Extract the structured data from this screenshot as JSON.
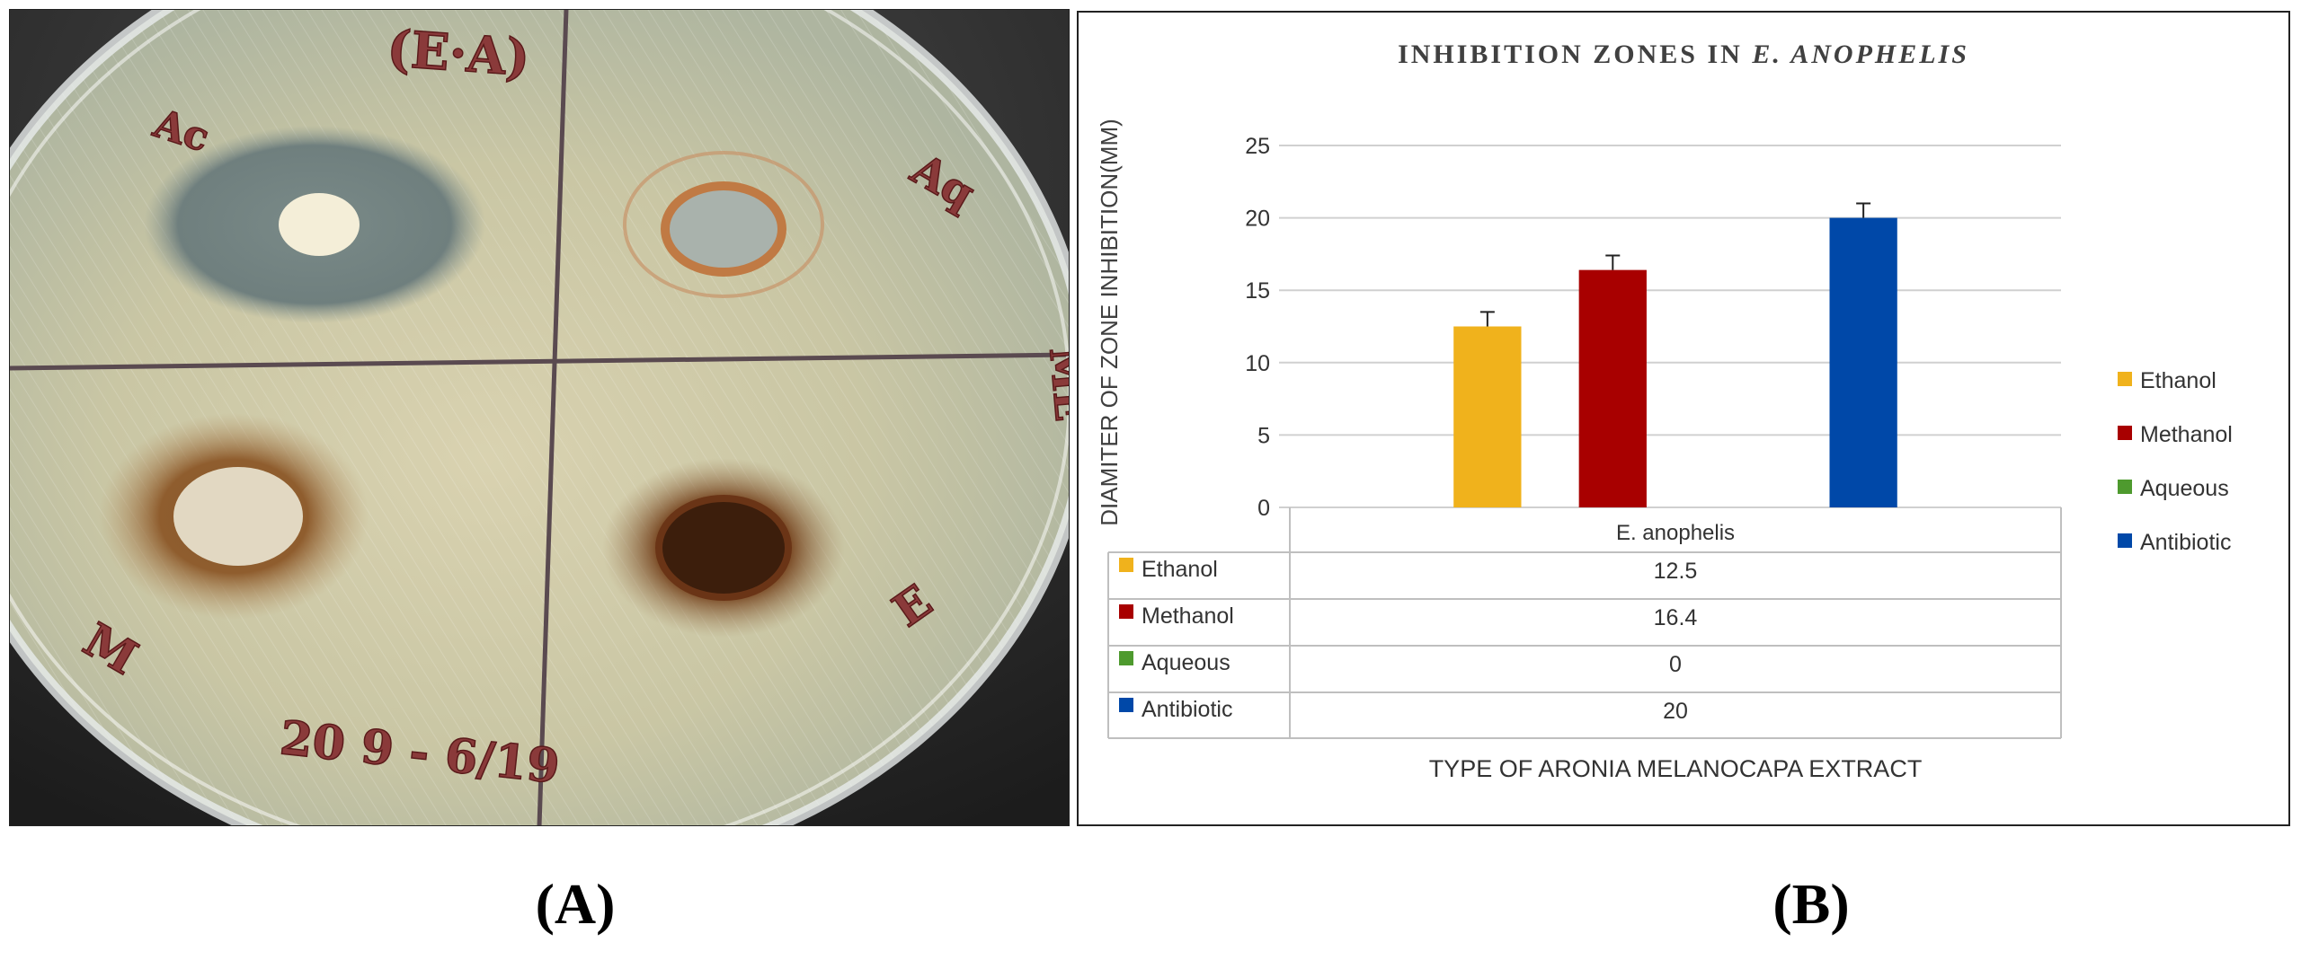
{
  "panels": {
    "a_label": "(A)",
    "b_label": "(B)"
  },
  "photo": {
    "handwriting": {
      "plate_id": "(E·A)",
      "ac": "Ac",
      "aq": "Aq",
      "me": "ME",
      "m": "M",
      "e": "E",
      "date": "20 9 - 6/19"
    }
  },
  "colors": {
    "ethanol": "#F0B21C",
    "methanol": "#A80000",
    "aqueous": "#4E9A2E",
    "antibiotic": "#0048A8",
    "grid": "#D0D0D0",
    "frame": "#333333",
    "text": "#333333"
  },
  "chart_data": {
    "type": "bar",
    "title_main": "INHIBITION ZONES IN ",
    "title_italic": "E. ANOPHELIS",
    "xlabel": "TYPE OF ARONIA MELANOCAPA EXTRACT",
    "ylabel": "DIAMITER OF ZONE INHIBITION(MM)",
    "ylim": [
      0,
      25
    ],
    "yticks": [
      "0",
      "5",
      "10",
      "15",
      "20",
      "25"
    ],
    "grid": true,
    "legend_position": "right",
    "categories": [
      "E. anophelis"
    ],
    "series": [
      {
        "name": "Ethanol",
        "values": [
          12.5
        ],
        "error": [
          1.0
        ],
        "value_label": "12.5"
      },
      {
        "name": "Methanol",
        "values": [
          16.4
        ],
        "error": [
          1.0
        ],
        "value_label": "16.4"
      },
      {
        "name": "Aqueous",
        "values": [
          0
        ],
        "error": [
          0
        ],
        "value_label": "0"
      },
      {
        "name": "Antibiotic",
        "values": [
          20
        ],
        "error": [
          1.0
        ],
        "value_label": "20"
      }
    ]
  }
}
